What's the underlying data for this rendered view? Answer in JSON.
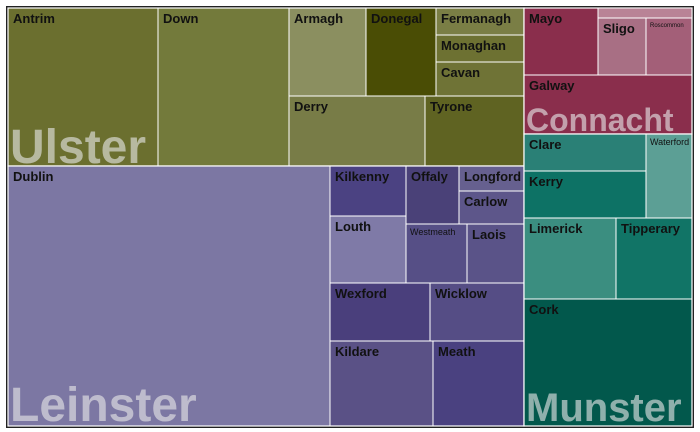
{
  "chart_data": {
    "type": "treemap",
    "provinces": [
      {
        "name": "Ulster",
        "color": "#6b6f2f",
        "counties": [
          {
            "name": "Antrim",
            "value": 0.1305,
            "color": "#6b6f2f"
          },
          {
            "name": "Down",
            "value": 0.1135,
            "color": "#737a3b"
          },
          {
            "name": "Armagh",
            "value": 0.0465,
            "color": "#8b8f60"
          },
          {
            "name": "Donegal",
            "value": 0.0407,
            "color": "#4a4d05"
          },
          {
            "name": "Fermanagh",
            "value": 0.0181,
            "color": "#7a7e45"
          },
          {
            "name": "Monaghan",
            "value": 0.0184,
            "color": "#6d7132"
          },
          {
            "name": "Cavan",
            "value": 0.0225,
            "color": "#6f7336"
          },
          {
            "name": "Derry",
            "value": 0.0725,
            "color": "#787c47"
          },
          {
            "name": "Tyrone",
            "value": 0.0551,
            "color": "#5f6322"
          }
        ]
      },
      {
        "name": "Leinster",
        "color": "#7c77a3",
        "counties": [
          {
            "name": "Dublin",
            "value": 0.5451,
            "color": "#7c77a3"
          },
          {
            "name": "Kilkenny",
            "value": 0.0423,
            "color": "#4b4282"
          },
          {
            "name": "Offaly",
            "value": 0.0274,
            "color": "#4a4178"
          },
          {
            "name": "Longford",
            "value": 0.0164,
            "color": "#66608f"
          },
          {
            "name": "Carlow",
            "value": 0.0174,
            "color": "#5d568a"
          },
          {
            "name": "Louth",
            "value": 0.0575,
            "color": "#7f7aa7"
          },
          {
            "name": "Westmeath",
            "value": 0.0317,
            "color": "#564f86"
          },
          {
            "name": "Laois",
            "value": 0.0284,
            "color": "#5a5388"
          },
          {
            "name": "Wexford",
            "value": 0.0564,
            "color": "#4a3f7c"
          },
          {
            "name": "Wicklow",
            "value": 0.0524,
            "color": "#554d85"
          },
          {
            "name": "Kildare",
            "value": 0.09,
            "color": "#5a5186"
          },
          {
            "name": "Meath",
            "value": 0.0821,
            "color": "#4a4180"
          }
        ]
      },
      {
        "name": "Connacht",
        "color": "#8a2e4c",
        "counties": [
          {
            "name": "Mayo",
            "value": 0.0192,
            "color": "#8a2e4c"
          },
          {
            "name": "Sligo",
            "value": 0.0089,
            "color": "#a86f84"
          },
          {
            "name": "Roscommon",
            "value": 0.0075,
            "color": "#a35f78"
          },
          {
            "name": "Galway",
            "value": 0.0437,
            "color": "#8a2e4c"
          }
        ]
      },
      {
        "name": "Munster",
        "color": "#0e6a5c",
        "counties": [
          {
            "name": "Clare",
            "value": 0.03,
            "color": "#2a8076"
          },
          {
            "name": "Kerry",
            "value": 0.0345,
            "color": "#0d7265"
          },
          {
            "name": "Waterford",
            "value": 0.035,
            "color": "#5c9f95"
          },
          {
            "name": "Limerick",
            "value": 0.0612,
            "color": "#3b8e80"
          },
          {
            "name": "Tipperary",
            "value": 0.0516,
            "color": "#117466"
          },
          {
            "name": "Cork",
            "value": 0.1409,
            "color": "#02584c"
          }
        ]
      }
    ]
  }
}
